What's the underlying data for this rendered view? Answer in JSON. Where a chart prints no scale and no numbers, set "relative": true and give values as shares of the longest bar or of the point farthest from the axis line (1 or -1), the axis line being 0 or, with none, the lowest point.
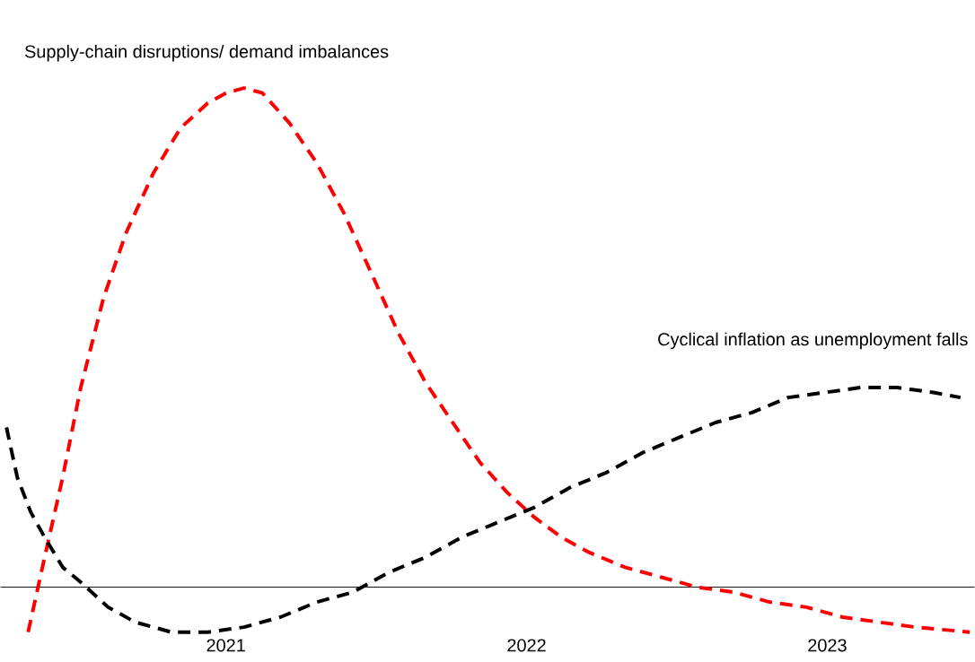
{
  "chart_data": {
    "type": "line",
    "relative": true,
    "line_style": "dashed",
    "marker": "none",
    "grid": false,
    "legend": false,
    "tick_labels": "x",
    "xlim": [
      2020.25,
      2023.49
    ],
    "xticks": [
      2021,
      2022,
      2023
    ],
    "series": [
      {
        "name": "Supply-chain disruptions/ demand imbalances",
        "color": "#ff0000",
        "x": [
          2020.342,
          2020.397,
          2020.457,
          2020.517,
          2020.593,
          2020.668,
          2020.759,
          2020.849,
          2020.94,
          2021.0,
          2021.06,
          2021.121,
          2021.211,
          2021.302,
          2021.392,
          2021.483,
          2021.573,
          2021.664,
          2021.754,
          2021.845,
          2021.935,
          2022.026,
          2022.116,
          2022.207,
          2022.327,
          2022.448,
          2022.569,
          2022.689,
          2022.81,
          2022.931,
          2023.051,
          2023.172,
          2023.293,
          2023.474
        ],
        "values": [
          -0.09,
          0.06,
          0.22,
          0.4,
          0.58,
          0.71,
          0.83,
          0.92,
          0.97,
          0.99,
          1.0,
          0.99,
          0.93,
          0.85,
          0.75,
          0.63,
          0.51,
          0.41,
          0.33,
          0.25,
          0.19,
          0.14,
          0.1,
          0.07,
          0.04,
          0.02,
          0.0,
          -0.01,
          -0.03,
          -0.04,
          -0.06,
          -0.07,
          -0.08,
          -0.09
        ]
      },
      {
        "name": "Cyclical inflation as unemployment falls",
        "color": "#000000",
        "x": [
          2020.27,
          2020.306,
          2020.351,
          2020.397,
          2020.457,
          2020.517,
          2020.608,
          2020.698,
          2020.819,
          2020.94,
          2021.06,
          2021.181,
          2021.302,
          2021.422,
          2021.543,
          2021.664,
          2021.784,
          2021.905,
          2022.026,
          2022.146,
          2022.267,
          2022.388,
          2022.508,
          2022.629,
          2022.75,
          2022.87,
          2022.991,
          2023.112,
          2023.232,
          2023.353,
          2023.443
        ],
        "values": [
          0.32,
          0.22,
          0.15,
          0.1,
          0.04,
          0.01,
          -0.04,
          -0.07,
          -0.09,
          -0.09,
          -0.08,
          -0.06,
          -0.03,
          -0.01,
          0.03,
          0.06,
          0.1,
          0.13,
          0.16,
          0.2,
          0.23,
          0.27,
          0.3,
          0.33,
          0.35,
          0.38,
          0.39,
          0.4,
          0.4,
          0.39,
          0.38
        ]
      }
    ]
  }
}
